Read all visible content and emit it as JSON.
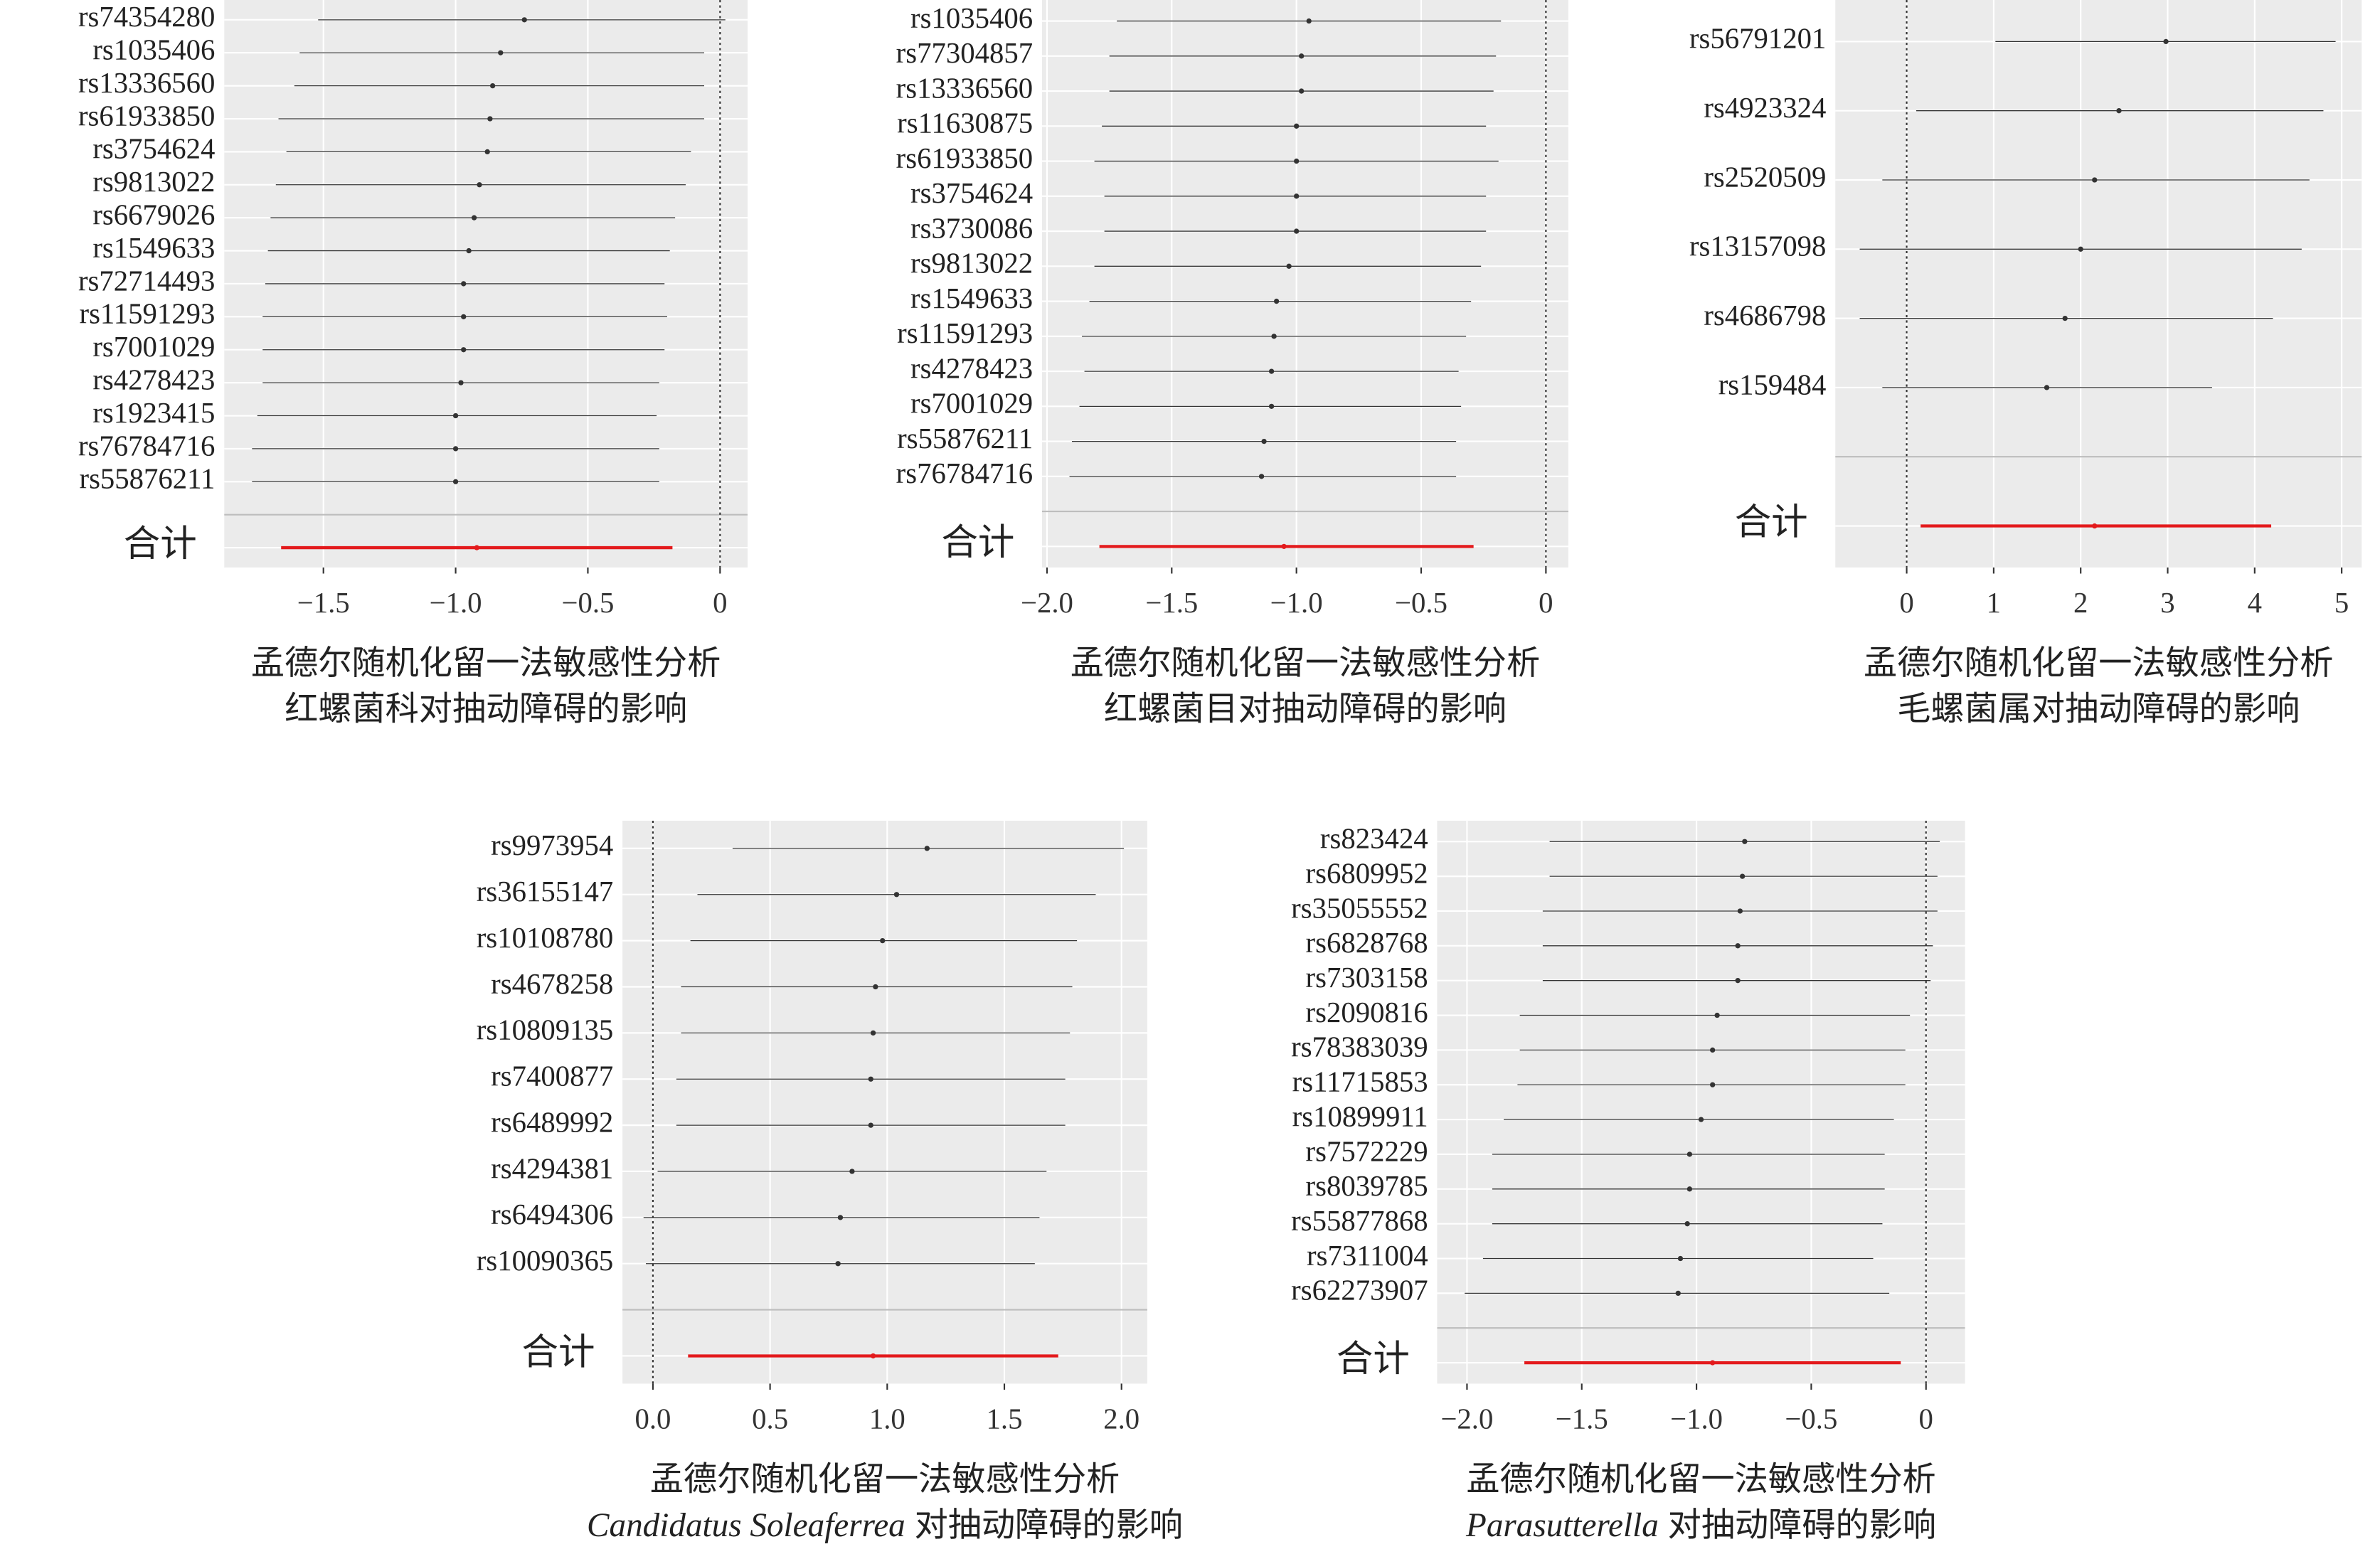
{
  "chart_data": [
    {
      "type": "forest",
      "xlabel": "孟德尔随机化留一法敏感性分析",
      "subtitle": "红螺菌科对抽动障碍的影响",
      "categories": [
        "rs74354280",
        "rs1035406",
        "rs13336560",
        "rs61933850",
        "rs3754624",
        "rs9813022",
        "rs6679026",
        "rs1549633",
        "rs72714493",
        "rs11591293",
        "rs7001029",
        "rs4278423",
        "rs1923415",
        "rs76784716",
        "rs55876211",
        null,
        "合计"
      ],
      "values": [
        -0.74,
        -0.83,
        -0.86,
        -0.87,
        -0.88,
        -0.91,
        -0.93,
        -0.95,
        -0.97,
        -0.97,
        -0.97,
        -0.98,
        -1.0,
        -1.0,
        -1.0,
        null,
        -0.92
      ],
      "lower": [
        -1.52,
        -1.59,
        -1.61,
        -1.67,
        -1.64,
        -1.68,
        -1.7,
        -1.71,
        -1.72,
        -1.73,
        -1.73,
        -1.73,
        -1.75,
        -1.77,
        -1.77,
        null,
        -1.66
      ],
      "upper": [
        0.02,
        -0.06,
        -0.06,
        -0.06,
        -0.11,
        -0.13,
        -0.17,
        -0.19,
        -0.21,
        -0.2,
        -0.21,
        -0.23,
        -0.24,
        -0.23,
        -0.23,
        null,
        -0.18
      ],
      "xlim": [
        -1.875,
        0.104
      ],
      "xticks": [
        {
          "value": -1.5,
          "label": "−1.5"
        },
        {
          "value": -1.0,
          "label": "−1.0"
        },
        {
          "value": -0.5,
          "label": "−0.5"
        },
        0
      ],
      "reference_line": 0,
      "line_color": "#333333",
      "total_color": "#e31a1c",
      "panel_color": "#ebebeb"
    },
    {
      "type": "forest",
      "xlabel": "孟德尔随机化留一法敏感性分析",
      "subtitle": "红螺菌目对抽动障碍的影响",
      "categories": [
        "rs1035406",
        "rs77304857",
        "rs13336560",
        "rs11630875",
        "rs61933850",
        "rs3754624",
        "rs3730086",
        "rs9813022",
        "rs1549633",
        "rs11591293",
        "rs4278423",
        "rs7001029",
        "rs55876211",
        "rs76784716",
        null,
        "合计"
      ],
      "values": [
        -0.95,
        -0.98,
        -0.98,
        -1.0,
        -1.0,
        -1.0,
        -1.0,
        -1.03,
        -1.08,
        -1.09,
        -1.1,
        -1.1,
        -1.13,
        -1.14,
        null,
        -1.05
      ],
      "lower": [
        -1.72,
        -1.75,
        -1.75,
        -1.78,
        -1.81,
        -1.77,
        -1.77,
        -1.81,
        -1.83,
        -1.86,
        -1.85,
        -1.87,
        -1.9,
        -1.91,
        null,
        -1.79
      ],
      "upper": [
        -0.18,
        -0.2,
        -0.21,
        -0.24,
        -0.19,
        -0.24,
        -0.24,
        -0.26,
        -0.3,
        -0.32,
        -0.35,
        -0.34,
        -0.36,
        -0.36,
        null,
        -0.29
      ],
      "xlim": [
        -2.02,
        0.09
      ],
      "xticks": [
        {
          "value": -2.0,
          "label": "−2.0"
        },
        {
          "value": -1.5,
          "label": "−1.5"
        },
        {
          "value": -1.0,
          "label": "−1.0"
        },
        {
          "value": -0.5,
          "label": "−0.5"
        },
        0
      ],
      "reference_line": 0,
      "line_color": "#333333",
      "total_color": "#e31a1c",
      "panel_color": "#ebebeb"
    },
    {
      "type": "forest",
      "xlabel": "孟德尔随机化留一法敏感性分析",
      "subtitle": "毛螺菌属对抽动障碍的影响",
      "categories": [
        "rs56791201",
        "rs4923324",
        "rs2520509",
        "rs13157098",
        "rs4686798",
        "rs159484",
        null,
        "合计"
      ],
      "values": [
        2.98,
        2.44,
        2.16,
        2.0,
        1.82,
        1.61,
        null,
        2.16
      ],
      "lower": [
        1.02,
        0.11,
        -0.28,
        -0.54,
        -0.54,
        -0.28,
        null,
        0.16
      ],
      "upper": [
        4.93,
        4.79,
        4.63,
        4.54,
        4.21,
        3.51,
        null,
        4.19
      ],
      "xlim": [
        -0.82,
        5.23
      ],
      "xticks": [
        0,
        1,
        2,
        3,
        4,
        5
      ],
      "reference_line": 0,
      "line_color": "#333333",
      "total_color": "#e31a1c",
      "panel_color": "#ebebeb"
    },
    {
      "type": "forest",
      "xlabel": "孟德尔随机化留一法敏感性分析",
      "subtitle_italic": "Candidatus Soleaferrea",
      "subtitle": "对抽动障碍的影响",
      "categories": [
        "rs9973954",
        "rs36155147",
        "rs10108780",
        "rs4678258",
        "rs10809135",
        "rs7400877",
        "rs6489992",
        "rs4294381",
        "rs6494306",
        "rs10090365",
        null,
        "合计"
      ],
      "values": [
        1.17,
        1.04,
        0.98,
        0.95,
        0.94,
        0.93,
        0.93,
        0.85,
        0.8,
        0.79,
        null,
        0.94
      ],
      "lower": [
        0.34,
        0.19,
        0.16,
        0.12,
        0.12,
        0.1,
        0.1,
        0.02,
        -0.04,
        -0.03,
        null,
        0.15
      ],
      "upper": [
        2.01,
        1.89,
        1.81,
        1.79,
        1.78,
        1.76,
        1.76,
        1.68,
        1.65,
        1.63,
        null,
        1.73
      ],
      "xlim": [
        -0.13,
        2.11
      ],
      "xticks": [
        {
          "value": 0,
          "label": "0.0"
        },
        0.5,
        {
          "value": 1.0,
          "label": "1.0"
        },
        1.5,
        {
          "value": 2.0,
          "label": "2.0"
        }
      ],
      "reference_line": 0,
      "line_color": "#333333",
      "total_color": "#e31a1c",
      "panel_color": "#ebebeb"
    },
    {
      "type": "forest",
      "xlabel": "孟德尔随机化留一法敏感性分析",
      "subtitle_italic": "Parasutterella",
      "subtitle": "对抽动障碍的影响",
      "categories": [
        "rs823424",
        "rs6809952",
        "rs35055552",
        "rs6828768",
        "rs7303158",
        "rs2090816",
        "rs78383039",
        "rs11715853",
        "rs10899911",
        "rs7572229",
        "rs8039785",
        "rs55877868",
        "rs7311004",
        "rs62273907",
        null,
        "合计"
      ],
      "values": [
        -0.79,
        -0.8,
        -0.81,
        -0.82,
        -0.82,
        -0.91,
        -0.93,
        -0.93,
        -0.98,
        -1.03,
        -1.03,
        -1.04,
        -1.07,
        -1.08,
        null,
        -0.93
      ],
      "lower": [
        -1.64,
        -1.64,
        -1.67,
        -1.67,
        -1.67,
        -1.77,
        -1.77,
        -1.78,
        -1.84,
        -1.89,
        -1.89,
        -1.89,
        -1.93,
        -2.01,
        null,
        -1.75
      ],
      "upper": [
        0.06,
        0.05,
        0.05,
        0.03,
        0.02,
        -0.07,
        -0.09,
        -0.09,
        -0.14,
        -0.18,
        -0.18,
        -0.19,
        -0.23,
        -0.16,
        null,
        -0.11
      ],
      "xlim": [
        -2.13,
        0.17
      ],
      "xticks": [
        {
          "value": -2.0,
          "label": "−2.0"
        },
        {
          "value": -1.5,
          "label": "−1.5"
        },
        {
          "value": -1.0,
          "label": "−1.0"
        },
        {
          "value": -0.5,
          "label": "−0.5"
        },
        0
      ],
      "reference_line": 0,
      "line_color": "#333333",
      "total_color": "#e31a1c",
      "panel_color": "#ebebeb"
    }
  ]
}
